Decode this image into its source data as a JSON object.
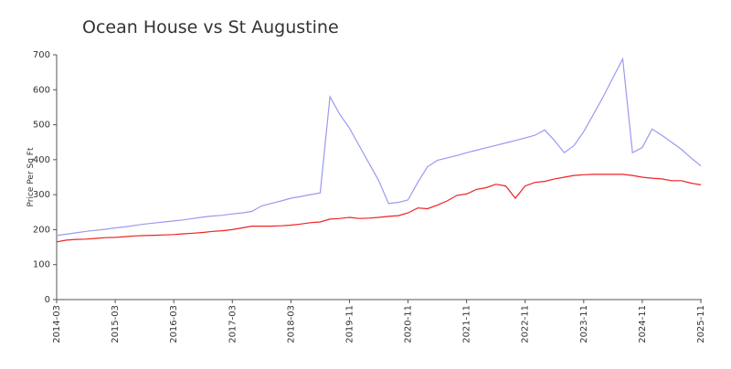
{
  "chart_data": {
    "type": "line",
    "title": "Ocean House vs St Augustine",
    "y_label": "Price Per Sq Ft",
    "categories": [
      "2014-03",
      null,
      null,
      null,
      null,
      null,
      "2015-03",
      null,
      null,
      null,
      null,
      null,
      "2016-03",
      null,
      null,
      null,
      null,
      null,
      "2017-03",
      null,
      null,
      null,
      null,
      null,
      "2018-03",
      null,
      null,
      null,
      null,
      null,
      "2019-11",
      null,
      null,
      null,
      null,
      null,
      "2020-11",
      null,
      null,
      null,
      null,
      null,
      "2021-11",
      null,
      null,
      null,
      null,
      null,
      "2022-11",
      null,
      null,
      null,
      null,
      null,
      "2023-11",
      null,
      null,
      null,
      null,
      null,
      "2024-11",
      null,
      null,
      null,
      null,
      null,
      "2025-11"
    ],
    "series": [
      {
        "color": "#9a9af0",
        "values": [
          183,
          187,
          191,
          195,
          198,
          201,
          205,
          208,
          212,
          216,
          219,
          222,
          225,
          228,
          232,
          236,
          239,
          241,
          245,
          248,
          252,
          268,
          275,
          282,
          290,
          295,
          300,
          305,
          580,
          530,
          490,
          440,
          390,
          340,
          275,
          278,
          285,
          335,
          380,
          398,
          405,
          412,
          420,
          427,
          434,
          441,
          448,
          455,
          462,
          470,
          485,
          455,
          420,
          440,
          480,
          530,
          580,
          635,
          688,
          420,
          435,
          488,
          470,
          450,
          430,
          405,
          382
        ]
      },
      {
        "color": "#ee2222",
        "values": [
          165,
          170,
          172,
          173,
          175,
          177,
          178,
          180,
          182,
          183,
          184,
          185,
          186,
          188,
          190,
          192,
          195,
          197,
          200,
          205,
          210,
          210,
          210,
          211,
          213,
          216,
          220,
          222,
          230,
          232,
          235,
          232,
          233,
          235,
          238,
          240,
          248,
          262,
          260,
          270,
          282,
          298,
          302,
          315,
          320,
          330,
          325,
          290,
          325,
          335,
          338,
          345,
          350,
          355,
          357,
          358,
          358,
          358,
          358,
          355,
          350,
          347,
          345,
          340,
          340,
          333,
          328
        ]
      }
    ],
    "ylim": [
      0,
      700
    ],
    "yticks": [
      0,
      100,
      200,
      300,
      400,
      500,
      600,
      700
    ]
  }
}
